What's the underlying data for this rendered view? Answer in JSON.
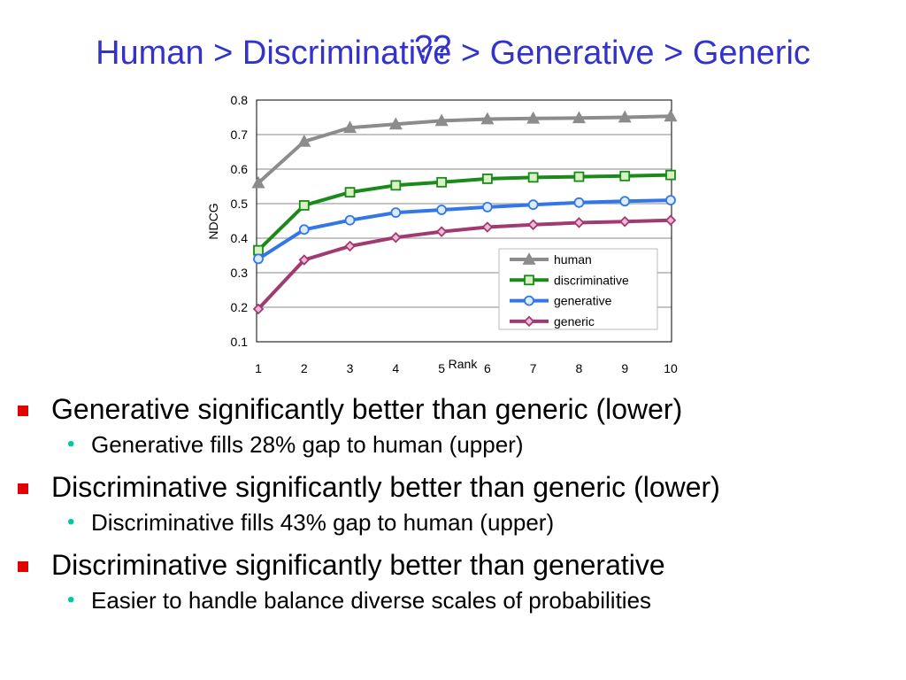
{
  "title": "Human > Discriminative > Generative > Generic",
  "title_overlay": "??",
  "chart_data": {
    "type": "line",
    "x": [
      1,
      2,
      3,
      4,
      5,
      6,
      7,
      8,
      9,
      10
    ],
    "xlabel": "Rank",
    "ylabel": "NDCG",
    "ylim": [
      0.1,
      0.8
    ],
    "yticks": [
      0.1,
      0.2,
      0.3,
      0.4,
      0.5,
      0.6,
      0.7,
      0.8
    ],
    "grid": true,
    "legend_position": "bottom-right",
    "series": [
      {
        "name": "human",
        "color": "#8c8c8c",
        "marker": "triangle",
        "values": [
          0.56,
          0.68,
          0.72,
          0.73,
          0.74,
          0.745,
          0.747,
          0.748,
          0.75,
          0.753
        ]
      },
      {
        "name": "discriminative",
        "color": "#1a8a1a",
        "marker": "square",
        "values": [
          0.365,
          0.495,
          0.533,
          0.553,
          0.562,
          0.572,
          0.576,
          0.578,
          0.58,
          0.583
        ]
      },
      {
        "name": "generative",
        "color": "#3377e6",
        "marker": "circle",
        "values": [
          0.34,
          0.425,
          0.452,
          0.474,
          0.482,
          0.49,
          0.497,
          0.503,
          0.507,
          0.51
        ]
      },
      {
        "name": "generic",
        "color": "#a03a70",
        "marker": "diamond",
        "values": [
          0.195,
          0.337,
          0.377,
          0.402,
          0.419,
          0.432,
          0.439,
          0.445,
          0.448,
          0.452
        ]
      }
    ]
  },
  "bullets": [
    {
      "text": "Generative significantly better than generic (lower)",
      "sub": [
        "Generative fills 28% gap to human (upper)"
      ]
    },
    {
      "text": "Discriminative significantly better than generic (lower)",
      "sub": [
        "Discriminative fills 43% gap to human (upper)"
      ]
    },
    {
      "text": "Discriminative significantly better than generative",
      "sub": [
        "Easier to handle balance diverse scales of probabilities"
      ]
    }
  ]
}
